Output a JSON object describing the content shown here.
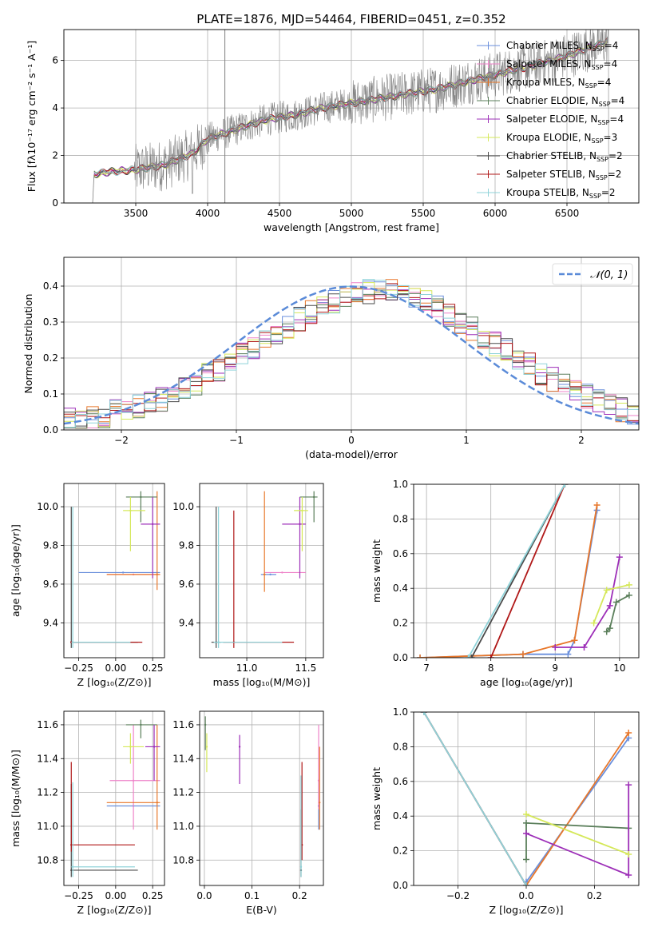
{
  "figure": {
    "title": "PLATE=1876, MJD=54464, FIBERID=0451, z=0.352"
  },
  "models": [
    {
      "name": "Chabrier MILES",
      "nssp": "4",
      "color": "#6a8fdc"
    },
    {
      "name": "Salpeter MILES",
      "nssp": "4",
      "color": "#ee82c8"
    },
    {
      "name": "Kroupa MILES",
      "nssp": "4",
      "color": "#e8772a"
    },
    {
      "name": "Chabrier ELODIE",
      "nssp": "4",
      "color": "#5b7f5b"
    },
    {
      "name": "Salpeter ELODIE",
      "nssp": "4",
      "color": "#9d2fb8"
    },
    {
      "name": "Kroupa ELODIE",
      "nssp": "3",
      "color": "#d5e85a"
    },
    {
      "name": "Chabrier STELIB",
      "nssp": "2",
      "color": "#4a4a4a"
    },
    {
      "name": "Salpeter STELIB",
      "nssp": "2",
      "color": "#b01818"
    },
    {
      "name": "Kroupa STELIB",
      "nssp": "2",
      "color": "#8fd3d9"
    }
  ],
  "chart_data": [
    {
      "id": "spectrum",
      "type": "line",
      "xlabel": "wavelength [Angstrom, rest frame]",
      "ylabel": "Flux [fλ10⁻¹⁷ erg cm⁻² s⁻¹ A⁻¹]",
      "xlim": [
        3000,
        7000
      ],
      "ylim": [
        0,
        7.3
      ],
      "xticks": [
        "3500",
        "4000",
        "4500",
        "5000",
        "5500",
        "6000",
        "6500"
      ],
      "yticks": [
        "0",
        "2",
        "4",
        "6"
      ],
      "grid": true,
      "legend": "right",
      "continuum": {
        "x": [
          3200,
          3300,
          3500,
          3700,
          3900,
          4000,
          4200,
          4400,
          4600,
          4800,
          5000,
          5200,
          5400,
          5600,
          5800,
          6000,
          6200,
          6400,
          6600,
          6780
        ],
        "y": [
          1.2,
          1.3,
          1.4,
          1.6,
          2.1,
          2.7,
          3.1,
          3.5,
          3.7,
          4.0,
          4.2,
          4.4,
          4.6,
          4.8,
          5.1,
          5.4,
          5.7,
          6.0,
          6.4,
          6.8
        ]
      },
      "vline": 4120
    },
    {
      "id": "residuals",
      "type": "step",
      "xlabel": "(data-model)/error",
      "ylabel": "Normed distribution",
      "xlim": [
        -2.5,
        2.5
      ],
      "ylim": [
        0,
        0.48
      ],
      "xticks": [
        "−2",
        "−1",
        "0",
        "1",
        "2"
      ],
      "yticks": [
        "0.0",
        "0.1",
        "0.2",
        "0.3",
        "0.4"
      ],
      "grid": true,
      "legend_label": "𝒩(0, 1)",
      "legend": "top-right",
      "bins": {
        "start": -2.5,
        "width": 0.1,
        "base": [
          0.03,
          0.025,
          0.035,
          0.04,
          0.05,
          0.06,
          0.065,
          0.07,
          0.085,
          0.1,
          0.11,
          0.13,
          0.15,
          0.17,
          0.19,
          0.21,
          0.225,
          0.25,
          0.27,
          0.29,
          0.31,
          0.33,
          0.35,
          0.36,
          0.37,
          0.38,
          0.385,
          0.39,
          0.39,
          0.38,
          0.37,
          0.36,
          0.34,
          0.32,
          0.3,
          0.28,
          0.26,
          0.24,
          0.22,
          0.2,
          0.18,
          0.16,
          0.14,
          0.125,
          0.11,
          0.095,
          0.08,
          0.065,
          0.055,
          0.045
        ]
      }
    },
    {
      "id": "age-vs-Z",
      "type": "errorbar",
      "xlabel": "Z [log₁₀(Z/Z⊙)]",
      "ylabel": "age  [log₁₀(age/yr)]",
      "xlim": [
        -0.35,
        0.33
      ],
      "ylim": [
        9.22,
        10.12
      ],
      "xticks": [
        "−0.25",
        "0.00",
        "0.25"
      ],
      "yticks": [
        "9.4",
        "9.6",
        "9.8",
        "10.0"
      ],
      "points": [
        {
          "m": 0,
          "x": 0.05,
          "y": 9.66,
          "xe": [
            -0.25,
            0.3
          ],
          "ye": null
        },
        {
          "m": 1,
          "x": 0.12,
          "y": 9.65,
          "xe": [
            -0.06,
            0.3
          ],
          "ye": null
        },
        {
          "m": 2,
          "x": 0.28,
          "y": 9.65,
          "xe": [
            -0.06,
            0.3
          ],
          "ye": [
            9.57,
            10.08
          ]
        },
        {
          "m": 3,
          "x": 0.17,
          "y": 10.05,
          "xe": [
            0.07,
            0.28
          ],
          "ye": [
            9.92,
            10.08
          ]
        },
        {
          "m": 4,
          "x": 0.25,
          "y": 9.91,
          "xe": [
            0.17,
            0.3
          ],
          "ye": [
            9.63,
            10.05
          ]
        },
        {
          "m": 5,
          "x": 0.1,
          "y": 9.98,
          "xe": [
            0.05,
            0.2
          ],
          "ye": [
            9.77,
            10.05
          ]
        },
        {
          "m": 6,
          "x": -0.3,
          "y": 9.3,
          "xe": [
            -0.3,
            0.15
          ],
          "ye": [
            9.27,
            10.0
          ]
        },
        {
          "m": 7,
          "x": -0.3,
          "y": 9.3,
          "xe": [
            -0.3,
            0.18
          ],
          "ye": null
        },
        {
          "m": 8,
          "x": -0.29,
          "y": 9.3,
          "xe": [
            -0.3,
            0.1
          ],
          "ye": [
            9.27,
            10.0
          ]
        }
      ]
    },
    {
      "id": "age-vs-mass",
      "type": "errorbar",
      "xlabel": "mass [log₁₀(M/M⊙)]",
      "ylabel": "",
      "xlim": [
        10.6,
        11.65
      ],
      "ylim": [
        9.22,
        10.12
      ],
      "xticks": [
        "11.0",
        "11.5"
      ],
      "yticks": [
        "9.4",
        "9.6",
        "9.8",
        "10.0"
      ],
      "points": [
        {
          "m": 0,
          "x": 11.2,
          "y": 9.65,
          "xe": [
            11.12,
            11.25
          ],
          "ye": null
        },
        {
          "m": 1,
          "x": 11.3,
          "y": 9.66,
          "xe": [
            11.15,
            11.5
          ],
          "ye": null
        },
        {
          "m": 2,
          "x": 11.15,
          "y": 9.65,
          "xe": [
            11.14,
            11.16
          ],
          "ye": [
            9.56,
            10.08
          ]
        },
        {
          "m": 3,
          "x": 11.57,
          "y": 10.05,
          "xe": [
            11.45,
            11.6
          ],
          "ye": [
            9.92,
            10.08
          ]
        },
        {
          "m": 4,
          "x": 11.45,
          "y": 9.91,
          "xe": [
            11.3,
            11.5
          ],
          "ye": [
            9.63,
            10.05
          ]
        },
        {
          "m": 5,
          "x": 11.47,
          "y": 9.98,
          "xe": [
            11.4,
            11.52
          ],
          "ye": [
            9.77,
            10.05
          ]
        },
        {
          "m": 6,
          "x": 10.74,
          "y": 9.3,
          "xe": [
            10.7,
            10.78
          ],
          "ye": [
            9.27,
            10.0
          ]
        },
        {
          "m": 7,
          "x": 10.89,
          "y": 9.3,
          "xe": [
            10.8,
            11.4
          ],
          "ye": [
            9.27,
            9.98
          ]
        },
        {
          "m": 8,
          "x": 10.76,
          "y": 9.3,
          "xe": [
            10.72,
            11.3
          ],
          "ye": [
            9.27,
            10.0
          ]
        }
      ]
    },
    {
      "id": "cum-mass-vs-age",
      "type": "line",
      "xlabel": "age  [log₁₀(age/yr)]",
      "ylabel": "mass weight",
      "xlim": [
        6.8,
        10.3
      ],
      "ylim": [
        0,
        1.0
      ],
      "xticks": [
        "7",
        "8",
        "9",
        "10"
      ],
      "yticks": [
        "0.0",
        "0.2",
        "0.4",
        "0.6",
        "0.8",
        "1.0"
      ],
      "series": [
        {
          "m": 0,
          "x": [
            6.9,
            8.5,
            9.2,
            9.3,
            9.65
          ],
          "y": [
            0.0,
            0.02,
            0.02,
            0.1,
            0.85
          ]
        },
        {
          "m": 2,
          "x": [
            6.9,
            8.5,
            9.3,
            9.65
          ],
          "y": [
            0.0,
            0.02,
            0.1,
            0.88
          ]
        },
        {
          "m": 3,
          "x": [
            9.8,
            9.85,
            9.95,
            10.15
          ],
          "y": [
            0.15,
            0.17,
            0.32,
            0.36
          ]
        },
        {
          "m": 4,
          "x": [
            9.0,
            9.45,
            9.85,
            10.0
          ],
          "y": [
            0.06,
            0.06,
            0.3,
            0.58
          ]
        },
        {
          "m": 5,
          "x": [
            9.6,
            9.8,
            10.15
          ],
          "y": [
            0.2,
            0.39,
            0.42
          ]
        },
        {
          "m": 6,
          "x": [
            7.7,
            9.15
          ],
          "y": [
            0.0,
            1.0
          ]
        },
        {
          "m": 7,
          "x": [
            8.0,
            9.15
          ],
          "y": [
            0.0,
            1.0
          ]
        },
        {
          "m": 8,
          "x": [
            7.65,
            9.15
          ],
          "y": [
            0.0,
            1.0
          ]
        }
      ]
    },
    {
      "id": "mass-vs-Z",
      "type": "errorbar",
      "xlabel": "Z [log₁₀(Z/Z⊙)]",
      "ylabel": "mass [log₁₀(M/M⊙)]",
      "xlim": [
        -0.35,
        0.33
      ],
      "ylim": [
        10.65,
        11.68
      ],
      "xticks": [
        "−0.25",
        "0.00",
        "0.25"
      ],
      "yticks": [
        "10.8",
        "11.0",
        "11.2",
        "11.4",
        "11.6"
      ],
      "points": [
        {
          "m": 0,
          "x": 0.12,
          "y": 11.12,
          "xe": [
            -0.06,
            0.3
          ],
          "ye": null
        },
        {
          "m": 1,
          "x": 0.12,
          "y": 11.27,
          "xe": [
            -0.04,
            0.3
          ],
          "ye": [
            10.98,
            11.6
          ]
        },
        {
          "m": 2,
          "x": 0.28,
          "y": 11.14,
          "xe": [
            -0.06,
            0.3
          ],
          "ye": [
            10.98,
            11.6
          ]
        },
        {
          "m": 3,
          "x": 0.17,
          "y": 11.6,
          "xe": [
            0.07,
            0.28
          ],
          "ye": [
            11.52,
            11.63
          ]
        },
        {
          "m": 4,
          "x": 0.26,
          "y": 11.47,
          "xe": [
            0.2,
            0.3
          ],
          "ye": [
            11.27,
            11.6
          ]
        },
        {
          "m": 5,
          "x": 0.1,
          "y": 11.47,
          "xe": [
            0.05,
            0.19
          ],
          "ye": [
            11.37,
            11.55
          ]
        },
        {
          "m": 6,
          "x": -0.3,
          "y": 10.74,
          "xe": [
            -0.3,
            0.15
          ],
          "ye": [
            10.7,
            11.25
          ]
        },
        {
          "m": 7,
          "x": -0.3,
          "y": 10.89,
          "xe": [
            -0.3,
            0.13
          ],
          "ye": [
            10.85,
            11.38
          ]
        },
        {
          "m": 8,
          "x": -0.29,
          "y": 10.76,
          "xe": [
            -0.3,
            0.13
          ],
          "ye": [
            10.7,
            11.26
          ]
        }
      ]
    },
    {
      "id": "mass-vs-EBV",
      "type": "errorbar",
      "xlabel": "E(B-V)",
      "ylabel": "",
      "xlim": [
        -0.01,
        0.25
      ],
      "ylim": [
        10.65,
        11.68
      ],
      "xticks": [
        "0.0",
        "0.1",
        "0.2"
      ],
      "yticks": [
        "10.8",
        "11.0",
        "11.2",
        "11.4",
        "11.6"
      ],
      "points": [
        {
          "m": 0,
          "x": 0.24,
          "y": 11.12,
          "ye": [
            10.98,
            11.28
          ]
        },
        {
          "m": 1,
          "x": 0.24,
          "y": 11.27,
          "ye": [
            11.1,
            11.6
          ]
        },
        {
          "m": 2,
          "x": 0.242,
          "y": 11.14,
          "ye": [
            10.98,
            11.47
          ]
        },
        {
          "m": 3,
          "x": 0.002,
          "y": 11.6,
          "ye": [
            11.45,
            11.65
          ]
        },
        {
          "m": 4,
          "x": 0.074,
          "y": 11.47,
          "ye": [
            11.25,
            11.54
          ]
        },
        {
          "m": 5,
          "x": 0.005,
          "y": 11.47,
          "ye": [
            11.32,
            11.55
          ]
        },
        {
          "m": 6,
          "x": 0.203,
          "y": 10.74,
          "ye": [
            10.7,
            11.1
          ]
        },
        {
          "m": 7,
          "x": 0.205,
          "y": 10.89,
          "ye": [
            10.8,
            11.38
          ]
        },
        {
          "m": 8,
          "x": 0.203,
          "y": 10.76,
          "ye": [
            10.7,
            11.3
          ]
        }
      ]
    },
    {
      "id": "cum-mass-vs-Z",
      "type": "line",
      "xlabel": "Z [log₁₀(Z/Z⊙)]",
      "ylabel": "mass weight",
      "xlim": [
        -0.33,
        0.33
      ],
      "ylim": [
        0,
        1.0
      ],
      "xticks": [
        "−0.2",
        "0.0",
        "0.2"
      ],
      "yticks": [
        "0.0",
        "0.2",
        "0.4",
        "0.6",
        "0.8",
        "1.0"
      ],
      "series": [
        {
          "m": 0,
          "x": [
            0.0,
            0.3
          ],
          "y": [
            0.02,
            0.85
          ]
        },
        {
          "m": 2,
          "x": [
            0.0,
            0.3
          ],
          "y": [
            0.0,
            0.88
          ]
        },
        {
          "m": 3,
          "x": [
            0.0,
            0.0,
            0.3
          ],
          "y": [
            0.15,
            0.36,
            0.33
          ]
        },
        {
          "m": 4,
          "x": [
            0.0,
            0.3,
            0.3
          ],
          "y": [
            0.3,
            0.06,
            0.58
          ]
        },
        {
          "m": 5,
          "x": [
            0.0,
            0.3
          ],
          "y": [
            0.41,
            0.18
          ]
        },
        {
          "m": 6,
          "x": [
            -0.3,
            0.0
          ],
          "y": [
            1.0,
            0.0
          ]
        },
        {
          "m": 7,
          "x": [
            -0.3,
            0.0
          ],
          "y": [
            1.0,
            0.0
          ]
        },
        {
          "m": 8,
          "x": [
            -0.3,
            0.0
          ],
          "y": [
            1.0,
            0.0
          ]
        }
      ]
    }
  ]
}
